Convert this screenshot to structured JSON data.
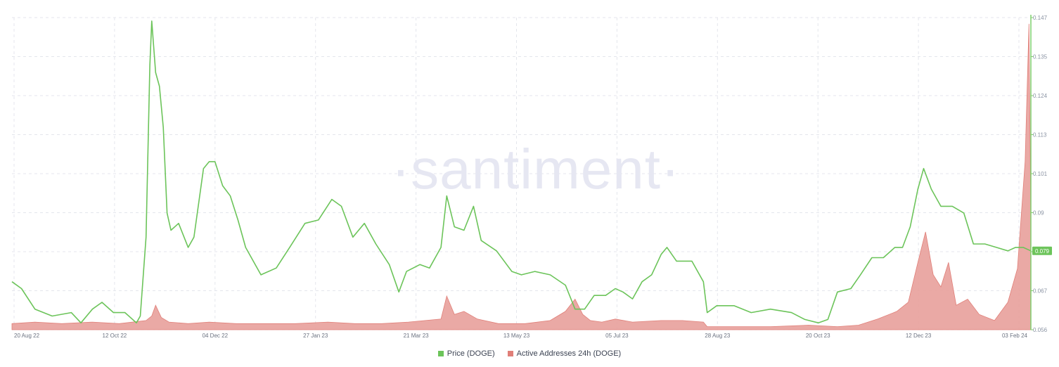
{
  "watermark": "·santiment·",
  "colors": {
    "price": "#6cc45a",
    "addresses": "#e8a09b",
    "addresses_line": "#e07f78",
    "grid": "#e4e6ec",
    "axis": "#7fcf6d"
  },
  "chart_data": {
    "type": "line",
    "title": "",
    "x_range": [
      "2022-08-20",
      "2024-02-03"
    ],
    "x_ticks": [
      "20 Aug 22",
      "12 Oct 22",
      "04 Dec 22",
      "27 Jan 23",
      "21 Mar 23",
      "13 May 23",
      "05 Jul 23",
      "28 Aug 23",
      "20 Oct 23",
      "12 Dec 23",
      "03 Feb 24"
    ],
    "y_ticks": [
      "0.147",
      "0.135",
      "0.124",
      "0.113",
      "0.101",
      "0.09",
      "0.079",
      "0.067",
      "0.056"
    ],
    "ylim": [
      0.056,
      0.147
    ],
    "current_price_label": "0.079",
    "grid": true,
    "legend_position": "bottom-center",
    "series": [
      {
        "name": "Price (DOGE)",
        "axis": "right",
        "color": "#6cc45a",
        "points": [
          [
            "2022-08-20",
            0.07
          ],
          [
            "2022-08-25",
            0.068
          ],
          [
            "2022-09-01",
            0.062
          ],
          [
            "2022-09-10",
            0.06
          ],
          [
            "2022-09-20",
            0.061
          ],
          [
            "2022-09-25",
            0.058
          ],
          [
            "2022-10-01",
            0.062
          ],
          [
            "2022-10-06",
            0.064
          ],
          [
            "2022-10-12",
            0.061
          ],
          [
            "2022-10-18",
            0.061
          ],
          [
            "2022-10-24",
            0.058
          ],
          [
            "2022-10-26",
            0.06
          ],
          [
            "2022-10-29",
            0.083
          ],
          [
            "2022-10-31",
            0.133
          ],
          [
            "2022-11-01",
            0.146
          ],
          [
            "2022-11-03",
            0.131
          ],
          [
            "2022-11-05",
            0.127
          ],
          [
            "2022-11-07",
            0.115
          ],
          [
            "2022-11-09",
            0.09
          ],
          [
            "2022-11-11",
            0.085
          ],
          [
            "2022-11-15",
            0.087
          ],
          [
            "2022-11-20",
            0.08
          ],
          [
            "2022-11-23",
            0.083
          ],
          [
            "2022-11-28",
            0.103
          ],
          [
            "2022-12-01",
            0.105
          ],
          [
            "2022-12-04",
            0.105
          ],
          [
            "2022-12-08",
            0.098
          ],
          [
            "2022-12-12",
            0.095
          ],
          [
            "2022-12-16",
            0.088
          ],
          [
            "2022-12-20",
            0.08
          ],
          [
            "2022-12-28",
            0.072
          ],
          [
            "2023-01-05",
            0.074
          ],
          [
            "2023-01-12",
            0.08
          ],
          [
            "2023-01-20",
            0.087
          ],
          [
            "2023-01-27",
            0.088
          ],
          [
            "2023-02-03",
            0.094
          ],
          [
            "2023-02-08",
            0.092
          ],
          [
            "2023-02-14",
            0.083
          ],
          [
            "2023-02-20",
            0.087
          ],
          [
            "2023-02-26",
            0.081
          ],
          [
            "2023-03-05",
            0.075
          ],
          [
            "2023-03-10",
            0.067
          ],
          [
            "2023-03-14",
            0.073
          ],
          [
            "2023-03-21",
            0.075
          ],
          [
            "2023-03-26",
            0.074
          ],
          [
            "2023-04-01",
            0.08
          ],
          [
            "2023-04-04",
            0.095
          ],
          [
            "2023-04-08",
            0.086
          ],
          [
            "2023-04-13",
            0.085
          ],
          [
            "2023-04-18",
            0.092
          ],
          [
            "2023-04-22",
            0.082
          ],
          [
            "2023-04-30",
            0.079
          ],
          [
            "2023-05-08",
            0.073
          ],
          [
            "2023-05-13",
            0.072
          ],
          [
            "2023-05-20",
            0.073
          ],
          [
            "2023-05-28",
            0.072
          ],
          [
            "2023-06-05",
            0.069
          ],
          [
            "2023-06-10",
            0.062
          ],
          [
            "2023-06-15",
            0.062
          ],
          [
            "2023-06-20",
            0.066
          ],
          [
            "2023-06-26",
            0.066
          ],
          [
            "2023-07-01",
            0.068
          ],
          [
            "2023-07-05",
            0.067
          ],
          [
            "2023-07-10",
            0.065
          ],
          [
            "2023-07-15",
            0.07
          ],
          [
            "2023-07-20",
            0.072
          ],
          [
            "2023-07-25",
            0.078
          ],
          [
            "2023-07-28",
            0.08
          ],
          [
            "2023-08-02",
            0.076
          ],
          [
            "2023-08-10",
            0.076
          ],
          [
            "2023-08-16",
            0.07
          ],
          [
            "2023-08-18",
            0.061
          ],
          [
            "2023-08-23",
            0.063
          ],
          [
            "2023-09-01",
            0.063
          ],
          [
            "2023-09-10",
            0.061
          ],
          [
            "2023-09-20",
            0.062
          ],
          [
            "2023-10-01",
            0.061
          ],
          [
            "2023-10-08",
            0.059
          ],
          [
            "2023-10-15",
            0.058
          ],
          [
            "2023-10-20",
            0.059
          ],
          [
            "2023-10-25",
            0.067
          ],
          [
            "2023-11-01",
            0.068
          ],
          [
            "2023-11-06",
            0.072
          ],
          [
            "2023-11-12",
            0.077
          ],
          [
            "2023-11-18",
            0.077
          ],
          [
            "2023-11-24",
            0.08
          ],
          [
            "2023-11-28",
            0.08
          ],
          [
            "2023-12-02",
            0.086
          ],
          [
            "2023-12-06",
            0.097
          ],
          [
            "2023-12-09",
            0.103
          ],
          [
            "2023-12-13",
            0.097
          ],
          [
            "2023-12-18",
            0.092
          ],
          [
            "2023-12-24",
            0.092
          ],
          [
            "2023-12-30",
            0.09
          ],
          [
            "2024-01-04",
            0.081
          ],
          [
            "2024-01-10",
            0.081
          ],
          [
            "2024-01-16",
            0.08
          ],
          [
            "2024-01-22",
            0.079
          ],
          [
            "2024-01-26",
            0.08
          ],
          [
            "2024-01-30",
            0.08
          ],
          [
            "2024-02-03",
            0.079
          ]
        ]
      },
      {
        "name": "Active Addresses 24h (DOGE)",
        "axis": "hidden",
        "color": "#e8a09b",
        "scale_note": "relative",
        "points": [
          [
            "2022-08-20",
            2.0
          ],
          [
            "2022-09-01",
            2.5
          ],
          [
            "2022-09-15",
            2.0
          ],
          [
            "2022-10-01",
            2.5
          ],
          [
            "2022-10-15",
            2.0
          ],
          [
            "2022-10-29",
            3.0
          ],
          [
            "2022-11-01",
            4.5
          ],
          [
            "2022-11-03",
            8.0
          ],
          [
            "2022-11-06",
            4.0
          ],
          [
            "2022-11-10",
            2.5
          ],
          [
            "2022-11-20",
            2.0
          ],
          [
            "2022-12-01",
            2.5
          ],
          [
            "2022-12-15",
            2.0
          ],
          [
            "2023-01-01",
            2.0
          ],
          [
            "2023-01-15",
            2.0
          ],
          [
            "2023-02-01",
            2.5
          ],
          [
            "2023-02-15",
            2.0
          ],
          [
            "2023-03-01",
            2.0
          ],
          [
            "2023-03-15",
            2.5
          ],
          [
            "2023-04-01",
            3.5
          ],
          [
            "2023-04-04",
            11.0
          ],
          [
            "2023-04-08",
            5.0
          ],
          [
            "2023-04-13",
            6.0
          ],
          [
            "2023-04-20",
            3.5
          ],
          [
            "2023-05-01",
            2.0
          ],
          [
            "2023-05-15",
            2.0
          ],
          [
            "2023-05-28",
            3.0
          ],
          [
            "2023-06-05",
            6.0
          ],
          [
            "2023-06-10",
            10.0
          ],
          [
            "2023-06-14",
            5.0
          ],
          [
            "2023-06-18",
            3.0
          ],
          [
            "2023-06-24",
            2.5
          ],
          [
            "2023-07-01",
            3.5
          ],
          [
            "2023-07-10",
            2.5
          ],
          [
            "2023-07-25",
            3.0
          ],
          [
            "2023-08-05",
            3.0
          ],
          [
            "2023-08-16",
            2.5
          ],
          [
            "2023-08-18",
            1.0
          ],
          [
            "2023-09-01",
            1.0
          ],
          [
            "2023-09-20",
            1.0
          ],
          [
            "2023-10-10",
            1.5
          ],
          [
            "2023-10-25",
            1.0
          ],
          [
            "2023-11-05",
            1.5
          ],
          [
            "2023-11-15",
            3.5
          ],
          [
            "2023-11-25",
            6.0
          ],
          [
            "2023-12-01",
            9.0
          ],
          [
            "2023-12-06",
            22.0
          ],
          [
            "2023-12-10",
            32.0
          ],
          [
            "2023-12-14",
            18.0
          ],
          [
            "2023-12-18",
            14.0
          ],
          [
            "2023-12-22",
            22.0
          ],
          [
            "2023-12-26",
            8.0
          ],
          [
            "2024-01-01",
            10.0
          ],
          [
            "2024-01-07",
            5.0
          ],
          [
            "2024-01-15",
            3.0
          ],
          [
            "2024-01-22",
            9.0
          ],
          [
            "2024-01-27",
            20.0
          ],
          [
            "2024-01-31",
            55.0
          ],
          [
            "2024-02-02",
            100.0
          ],
          [
            "2024-02-03",
            36.0
          ]
        ]
      }
    ]
  },
  "legend": [
    {
      "label": "Price (DOGE)",
      "color": "#6cc45a"
    },
    {
      "label": "Active Addresses 24h (DOGE)",
      "color": "#e07f78"
    }
  ]
}
